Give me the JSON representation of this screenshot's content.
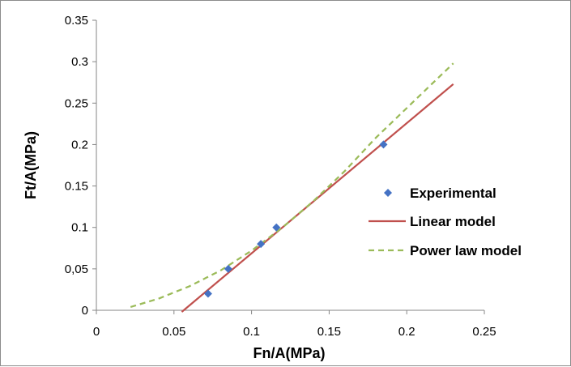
{
  "chart_data": {
    "type": "scatter",
    "xlabel": "Fn/A(MPa)",
    "ylabel": "Ft/A(MPa)",
    "xlim": [
      0,
      0.25
    ],
    "ylim": [
      0,
      0.35
    ],
    "x_ticks": [
      "0",
      "0.05",
      "0.1",
      "0.15",
      "0.2",
      "0.25"
    ],
    "y_ticks": [
      "0",
      "0,05",
      "0.1",
      "0.15",
      "0.2",
      "0.25",
      "0.3",
      "0.35"
    ],
    "grid": false,
    "legend_position": "right",
    "series": [
      {
        "name": "Experimental",
        "style": "markers",
        "color": "#4472C4",
        "x": [
          0.072,
          0.085,
          0.106,
          0.116,
          0.185
        ],
        "y": [
          0.02,
          0.05,
          0.08,
          0.1,
          0.2
        ]
      },
      {
        "name": "Linear model",
        "style": "line",
        "color": "#C0504D",
        "x": [
          0.055,
          0.23
        ],
        "y": [
          -0.002,
          0.273
        ]
      },
      {
        "name": "Power law model",
        "style": "dashed",
        "color": "#9BBB59",
        "x": [
          0.022,
          0.04,
          0.06,
          0.08,
          0.1,
          0.12,
          0.14,
          0.16,
          0.18,
          0.2,
          0.22,
          0.23
        ],
        "y": [
          0.004,
          0.014,
          0.029,
          0.048,
          0.072,
          0.1,
          0.132,
          0.168,
          0.208,
          0.244,
          0.28,
          0.298
        ]
      }
    ]
  }
}
